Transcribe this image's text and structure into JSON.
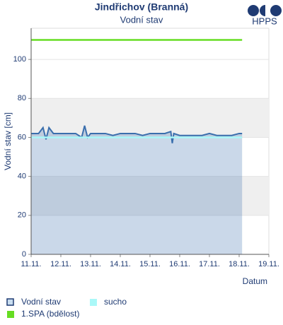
{
  "logo": "HPPS",
  "chart_data": {
    "type": "line",
    "title": "Jindřichov (Branná)",
    "subtitle": "Vodní stav",
    "y_label": "Vodní stav [cm]",
    "x_label": "Datum",
    "xlim": [
      11,
      19
    ],
    "xticks": [
      {
        "value": 11,
        "label": "11.11."
      },
      {
        "value": 12,
        "label": "12.11."
      },
      {
        "value": 13,
        "label": "13.11."
      },
      {
        "value": 14,
        "label": "14.11."
      },
      {
        "value": 15,
        "label": "15.11."
      },
      {
        "value": 16,
        "label": "16.11."
      },
      {
        "value": 17,
        "label": "17.11."
      },
      {
        "value": 18,
        "label": "18.11."
      },
      {
        "value": 19,
        "label": "19.11."
      }
    ],
    "ylim": [
      0,
      116
    ],
    "yticks": [
      0,
      20,
      40,
      60,
      80,
      100
    ],
    "series": [
      {
        "name": "Vodní stav",
        "color": "#3a6fad",
        "x": [
          11,
          11.25,
          11.4,
          11.5,
          11.6,
          11.75,
          12,
          12.25,
          12.5,
          12.7,
          12.8,
          12.9,
          13,
          13.25,
          13.5,
          13.75,
          14,
          14.25,
          14.5,
          14.75,
          15,
          15.25,
          15.5,
          15.7,
          15.75,
          15.8,
          16,
          16.25,
          16.5,
          16.75,
          17,
          17.25,
          17.5,
          17.75,
          18,
          18.1
        ],
        "values": [
          62,
          62,
          65,
          59,
          65,
          62,
          62,
          62,
          62,
          60,
          66,
          60,
          62,
          62,
          62,
          61,
          62,
          62,
          62,
          61,
          62,
          62,
          62,
          63,
          57,
          62,
          61,
          61,
          61,
          61,
          62,
          61,
          61,
          61,
          62,
          62
        ]
      },
      {
        "name": "sucho",
        "color": "#aaf8f8",
        "x": [
          11,
          18.1
        ],
        "values": [
          60,
          60
        ]
      },
      {
        "name": "1.SPA (bdělost)",
        "color": "#66dd22",
        "x": [
          11,
          18.1
        ],
        "values": [
          110,
          110
        ]
      }
    ]
  }
}
